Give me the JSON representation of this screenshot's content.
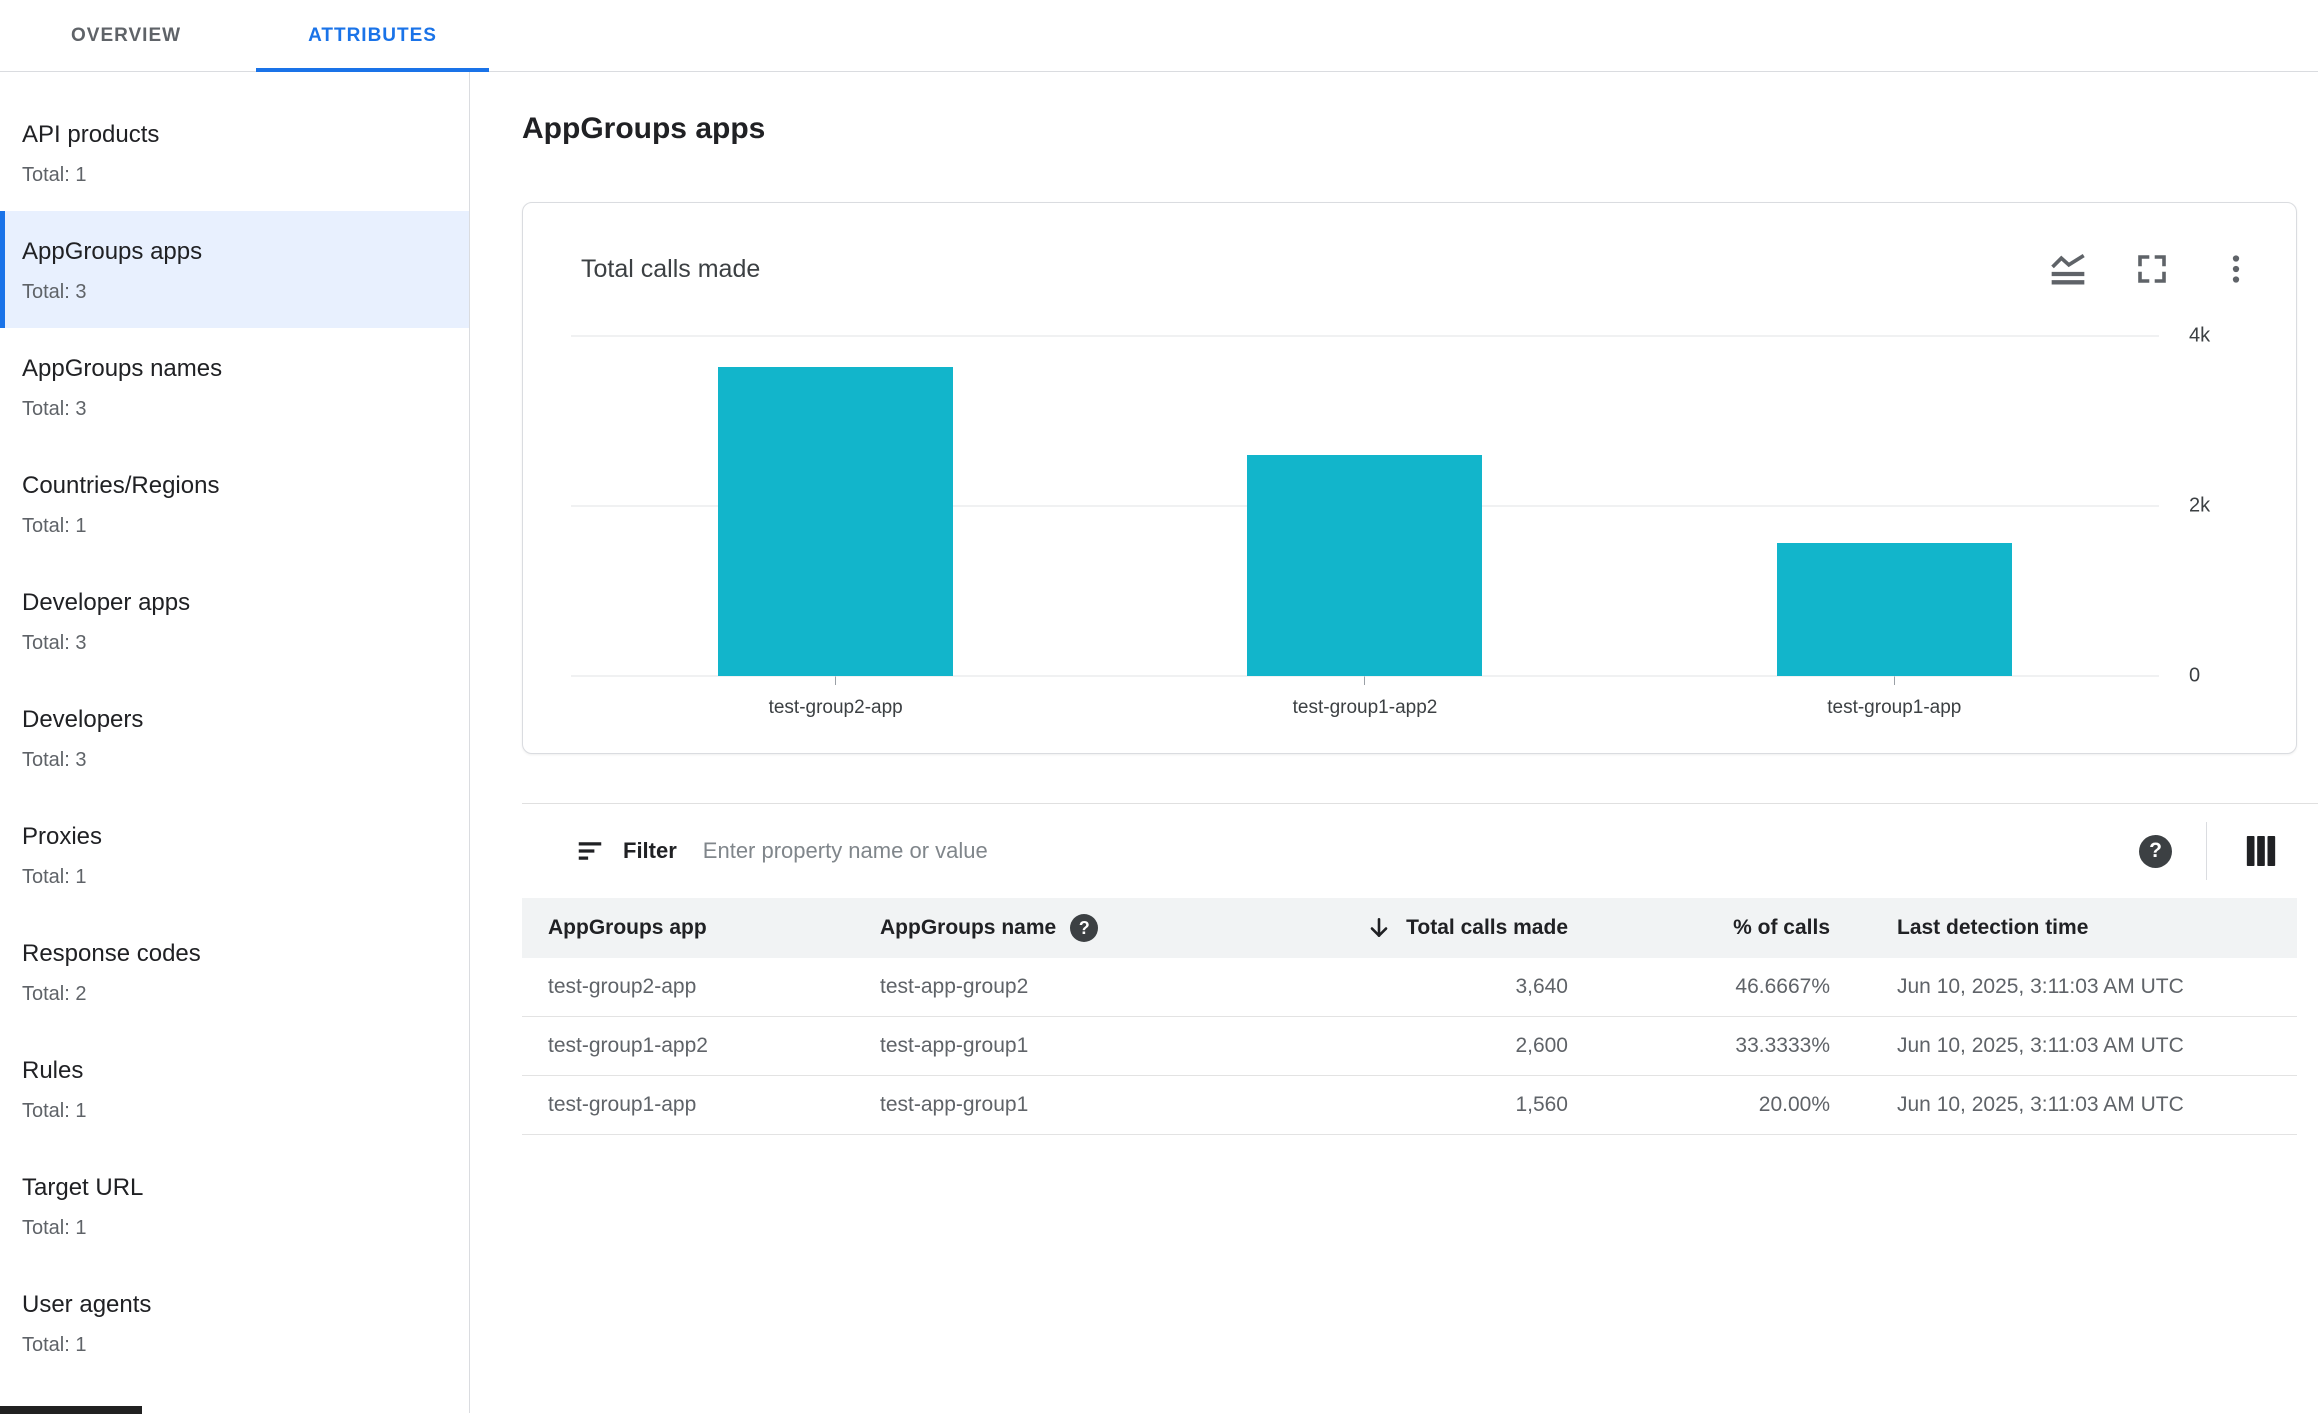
{
  "tabs": {
    "overview": "OVERVIEW",
    "attributes": "ATTRIBUTES",
    "active": "ATTRIBUTES"
  },
  "sidebar": {
    "selected": "AppGroups apps",
    "items": [
      {
        "label": "API products",
        "total": "Total: 1"
      },
      {
        "label": "AppGroups apps",
        "total": "Total: 3"
      },
      {
        "label": "AppGroups names",
        "total": "Total: 3"
      },
      {
        "label": "Countries/Regions",
        "total": "Total: 1"
      },
      {
        "label": "Developer apps",
        "total": "Total: 3"
      },
      {
        "label": "Developers",
        "total": "Total: 3"
      },
      {
        "label": "Proxies",
        "total": "Total: 1"
      },
      {
        "label": "Response codes",
        "total": "Total: 2"
      },
      {
        "label": "Rules",
        "total": "Total: 1"
      },
      {
        "label": "Target URL",
        "total": "Total: 1"
      },
      {
        "label": "User agents",
        "total": "Total: 1"
      }
    ]
  },
  "main": {
    "page_title": "AppGroups apps"
  },
  "chart_card": {
    "title": "Total calls made",
    "icons": [
      "stacked-area-chart-icon",
      "fullscreen-icon",
      "kebab-menu-icon"
    ]
  },
  "chart_data": {
    "type": "bar",
    "title": "Total calls made",
    "categories": [
      "test-group2-app",
      "test-group1-app2",
      "test-group1-app"
    ],
    "values": [
      3640,
      2600,
      1560
    ],
    "ylim": [
      0,
      4000
    ],
    "y_tick_labels": [
      "4k",
      "2k",
      "0"
    ],
    "bar_color": "#12b5cb",
    "grid": true,
    "legend": false
  },
  "filter_bar": {
    "label": "Filter",
    "placeholder": "Enter property name or value"
  },
  "table": {
    "columns": {
      "app": "AppGroups app",
      "name": "AppGroups name",
      "calls": "Total calls made",
      "percent": "% of calls",
      "last_detection": "Last detection time"
    },
    "sort": {
      "column": "Total calls made",
      "direction": "descending"
    },
    "rows": [
      {
        "app": "test-group2-app",
        "name": "test-app-group2",
        "calls": "3,640",
        "percent": "46.6667%",
        "last_detection": "Jun 10, 2025, 3:11:03 AM UTC"
      },
      {
        "app": "test-group1-app2",
        "name": "test-app-group1",
        "calls": "2,600",
        "percent": "33.3333%",
        "last_detection": "Jun 10, 2025, 3:11:03 AM UTC"
      },
      {
        "app": "test-group1-app",
        "name": "test-app-group1",
        "calls": "1,560",
        "percent": "20.00%",
        "last_detection": "Jun 10, 2025, 3:11:03 AM UTC"
      }
    ]
  },
  "colors": {
    "accent_blue": "#1a73e8",
    "selected_bg": "#e8f0fe",
    "bar_teal": "#12b5cb",
    "header_bg": "#f1f3f4"
  }
}
